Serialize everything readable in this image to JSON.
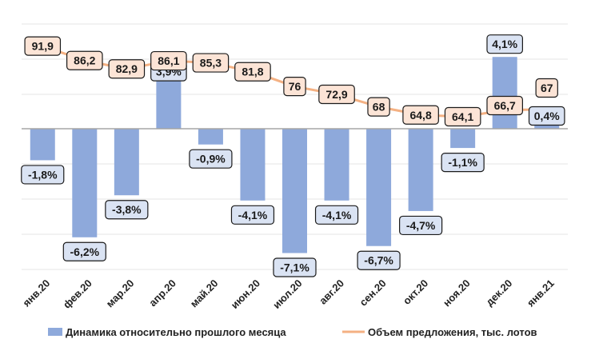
{
  "chart_data": {
    "type": "bar+line",
    "categories": [
      "янв.20",
      "фев.20",
      "мар.20",
      "апр.20",
      "май.20",
      "июн.20",
      "июл.20",
      "авг.20",
      "сен.20",
      "окт.20",
      "ноя.20",
      "дек.20",
      "янв.21"
    ],
    "series": [
      {
        "name": "Динамика относительно прошлого месяца",
        "kind": "bar",
        "axis": "left",
        "values": [
          -1.8,
          -6.2,
          -3.8,
          3.9,
          -0.9,
          -4.1,
          -7.1,
          -4.1,
          -6.7,
          -4.7,
          -1.1,
          4.1,
          0.4
        ],
        "labels": [
          "-1,8%",
          "-6,2%",
          "-3,8%",
          "3,9%",
          "-0,9%",
          "-4,1%",
          "-7,1%",
          "-4,1%",
          "-6,7%",
          "-4,7%",
          "-1,1%",
          "4,1%",
          "0,4%"
        ]
      },
      {
        "name": "Объем предложения, тыс. лотов",
        "kind": "line",
        "axis": "right",
        "values": [
          91.9,
          86.2,
          82.9,
          86.1,
          85.3,
          81.8,
          76,
          72.9,
          68,
          64.8,
          64.1,
          66.7,
          67
        ],
        "labels": [
          "91,9",
          "86,2",
          "82,9",
          "86,1",
          "85,3",
          "81,8",
          "76",
          "72,9",
          "68",
          "64,8",
          "64,1",
          "66,7",
          "67"
        ]
      }
    ],
    "title": "",
    "xlabel": "",
    "ylabel": "",
    "grid": true,
    "legend": "bottom"
  },
  "colors": {
    "bar": "#8EA9DB",
    "bar_border": "#7F9BD0",
    "line": "#F4B183",
    "line_label_fill": "#FCE4D6",
    "bar_label_fill": "#DAE3F3",
    "grid": "#E6E6E6",
    "zero_line": "#A6A6A6"
  },
  "legend": {
    "bar_label": "Динамика относительно прошлого месяца",
    "line_label": "Объем предложения, тыс. лотов"
  }
}
